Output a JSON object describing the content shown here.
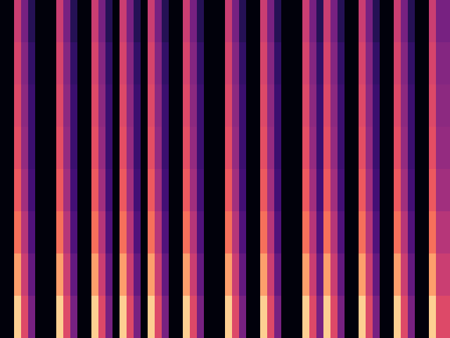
{
  "chart_data": {
    "type": "heatmap",
    "tick_labels": false,
    "color": "magma",
    "zlim": [
      0,
      1
    ],
    "cells": [
      [
        0.02,
        0.02,
        0.55,
        0.35,
        0.15,
        0.02,
        0.02,
        0.02,
        0.55,
        0.35,
        0.15,
        0.02,
        0.02,
        0.55,
        0.35,
        0.15,
        0.02,
        0.55,
        0.35,
        0.15,
        0.02,
        0.55,
        0.35,
        0.15,
        0.02,
        0.02,
        0.55,
        0.35,
        0.15,
        0.02,
        0.02,
        0.02,
        0.55,
        0.35,
        0.15,
        0.02,
        0.02,
        0.55,
        0.35,
        0.15,
        0.02,
        0.02,
        0.02,
        0.55,
        0.35,
        0.15,
        0.55,
        0.35,
        0.15,
        0.02,
        0.02,
        0.55,
        0.35,
        0.15,
        0.02,
        0.02,
        0.55,
        0.35,
        0.15,
        0.02,
        0.02,
        0.55,
        0.35,
        0.35
      ],
      [
        0.02,
        0.02,
        0.58,
        0.38,
        0.18,
        0.02,
        0.02,
        0.02,
        0.58,
        0.38,
        0.18,
        0.02,
        0.02,
        0.58,
        0.38,
        0.18,
        0.02,
        0.58,
        0.38,
        0.18,
        0.02,
        0.58,
        0.38,
        0.18,
        0.02,
        0.02,
        0.58,
        0.38,
        0.18,
        0.02,
        0.02,
        0.02,
        0.58,
        0.38,
        0.18,
        0.02,
        0.02,
        0.58,
        0.38,
        0.18,
        0.02,
        0.02,
        0.02,
        0.58,
        0.38,
        0.18,
        0.58,
        0.38,
        0.18,
        0.02,
        0.02,
        0.58,
        0.38,
        0.18,
        0.02,
        0.02,
        0.58,
        0.38,
        0.18,
        0.02,
        0.02,
        0.58,
        0.38,
        0.38
      ],
      [
        0.02,
        0.02,
        0.6,
        0.4,
        0.2,
        0.02,
        0.02,
        0.02,
        0.6,
        0.4,
        0.2,
        0.02,
        0.02,
        0.6,
        0.4,
        0.2,
        0.02,
        0.6,
        0.4,
        0.2,
        0.02,
        0.6,
        0.4,
        0.2,
        0.02,
        0.02,
        0.6,
        0.4,
        0.2,
        0.02,
        0.02,
        0.02,
        0.6,
        0.4,
        0.2,
        0.02,
        0.02,
        0.6,
        0.4,
        0.2,
        0.02,
        0.02,
        0.02,
        0.6,
        0.4,
        0.2,
        0.6,
        0.4,
        0.2,
        0.02,
        0.02,
        0.6,
        0.4,
        0.2,
        0.02,
        0.02,
        0.6,
        0.4,
        0.2,
        0.02,
        0.02,
        0.6,
        0.4,
        0.4
      ],
      [
        0.02,
        0.02,
        0.62,
        0.42,
        0.2,
        0.02,
        0.02,
        0.02,
        0.62,
        0.42,
        0.2,
        0.02,
        0.02,
        0.62,
        0.42,
        0.2,
        0.02,
        0.62,
        0.42,
        0.2,
        0.02,
        0.62,
        0.42,
        0.2,
        0.02,
        0.02,
        0.62,
        0.42,
        0.2,
        0.02,
        0.02,
        0.02,
        0.62,
        0.42,
        0.2,
        0.02,
        0.02,
        0.62,
        0.42,
        0.2,
        0.02,
        0.02,
        0.02,
        0.62,
        0.42,
        0.2,
        0.62,
        0.42,
        0.2,
        0.02,
        0.02,
        0.62,
        0.42,
        0.2,
        0.02,
        0.02,
        0.62,
        0.42,
        0.2,
        0.02,
        0.02,
        0.62,
        0.42,
        0.42
      ],
      [
        0.02,
        0.02,
        0.65,
        0.45,
        0.22,
        0.02,
        0.02,
        0.02,
        0.65,
        0.45,
        0.22,
        0.02,
        0.02,
        0.65,
        0.45,
        0.22,
        0.02,
        0.65,
        0.45,
        0.22,
        0.02,
        0.65,
        0.45,
        0.22,
        0.02,
        0.02,
        0.65,
        0.45,
        0.22,
        0.02,
        0.02,
        0.02,
        0.65,
        0.45,
        0.22,
        0.02,
        0.02,
        0.65,
        0.45,
        0.22,
        0.02,
        0.02,
        0.02,
        0.65,
        0.45,
        0.22,
        0.65,
        0.45,
        0.22,
        0.02,
        0.02,
        0.65,
        0.45,
        0.22,
        0.02,
        0.02,
        0.65,
        0.45,
        0.22,
        0.02,
        0.02,
        0.65,
        0.45,
        0.45
      ],
      [
        0.02,
        0.02,
        0.7,
        0.5,
        0.25,
        0.02,
        0.02,
        0.02,
        0.7,
        0.5,
        0.25,
        0.02,
        0.02,
        0.7,
        0.5,
        0.25,
        0.02,
        0.7,
        0.5,
        0.25,
        0.02,
        0.7,
        0.5,
        0.25,
        0.02,
        0.02,
        0.7,
        0.5,
        0.25,
        0.02,
        0.02,
        0.02,
        0.7,
        0.5,
        0.25,
        0.02,
        0.02,
        0.7,
        0.5,
        0.25,
        0.02,
        0.02,
        0.02,
        0.7,
        0.5,
        0.25,
        0.7,
        0.5,
        0.25,
        0.02,
        0.02,
        0.7,
        0.5,
        0.25,
        0.02,
        0.02,
        0.7,
        0.5,
        0.25,
        0.02,
        0.02,
        0.7,
        0.5,
        0.5
      ],
      [
        0.02,
        0.02,
        0.8,
        0.55,
        0.3,
        0.02,
        0.02,
        0.02,
        0.8,
        0.55,
        0.3,
        0.02,
        0.02,
        0.8,
        0.55,
        0.3,
        0.02,
        0.8,
        0.55,
        0.3,
        0.02,
        0.8,
        0.55,
        0.3,
        0.02,
        0.02,
        0.8,
        0.55,
        0.3,
        0.02,
        0.02,
        0.02,
        0.8,
        0.55,
        0.3,
        0.02,
        0.02,
        0.8,
        0.55,
        0.3,
        0.02,
        0.02,
        0.02,
        0.8,
        0.55,
        0.3,
        0.8,
        0.55,
        0.3,
        0.02,
        0.02,
        0.8,
        0.55,
        0.3,
        0.02,
        0.02,
        0.8,
        0.55,
        0.3,
        0.02,
        0.02,
        0.8,
        0.55,
        0.55
      ],
      [
        0.02,
        0.02,
        0.9,
        0.6,
        0.35,
        0.02,
        0.02,
        0.02,
        0.9,
        0.6,
        0.35,
        0.02,
        0.02,
        0.9,
        0.6,
        0.35,
        0.02,
        0.9,
        0.6,
        0.35,
        0.02,
        0.9,
        0.6,
        0.35,
        0.02,
        0.02,
        0.9,
        0.6,
        0.35,
        0.02,
        0.02,
        0.02,
        0.9,
        0.6,
        0.35,
        0.02,
        0.02,
        0.9,
        0.6,
        0.35,
        0.02,
        0.02,
        0.02,
        0.9,
        0.6,
        0.35,
        0.9,
        0.6,
        0.35,
        0.02,
        0.02,
        0.9,
        0.6,
        0.35,
        0.02,
        0.02,
        0.9,
        0.6,
        0.35,
        0.02,
        0.02,
        0.9,
        0.6,
        0.6
      ]
    ]
  }
}
